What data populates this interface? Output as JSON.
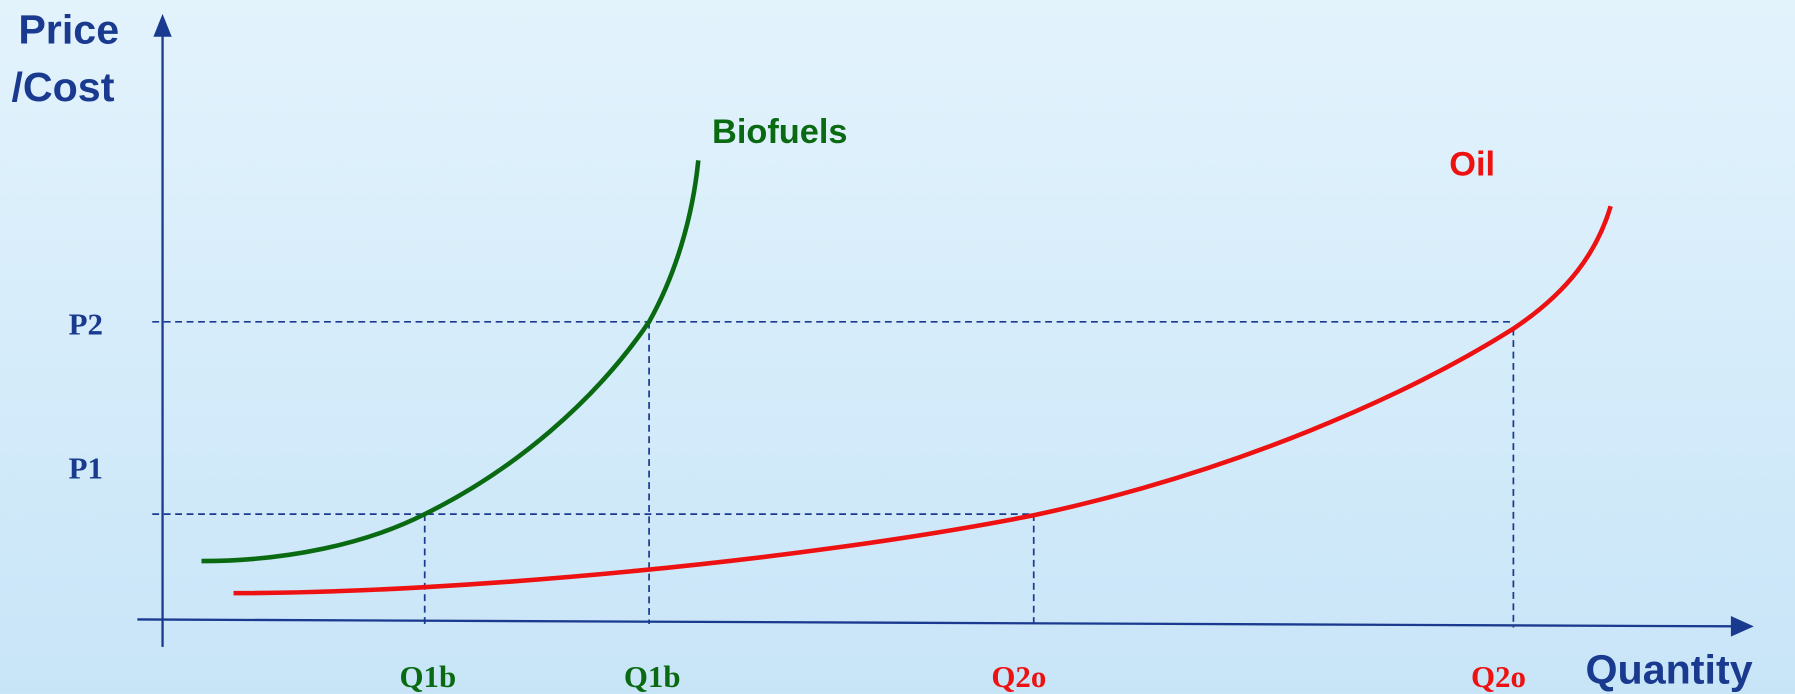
{
  "axes": {
    "y_label": [
      "Price",
      "/Cost"
    ],
    "x_label": "Quantity"
  },
  "curves": [
    {
      "label": "Biofuels"
    },
    {
      "label": "Oil"
    }
  ],
  "price_levels": [
    "P2",
    "P1"
  ],
  "quantity_levels": [
    "Q1b",
    "Q1b",
    "Q2o",
    "Q2o"
  ]
}
